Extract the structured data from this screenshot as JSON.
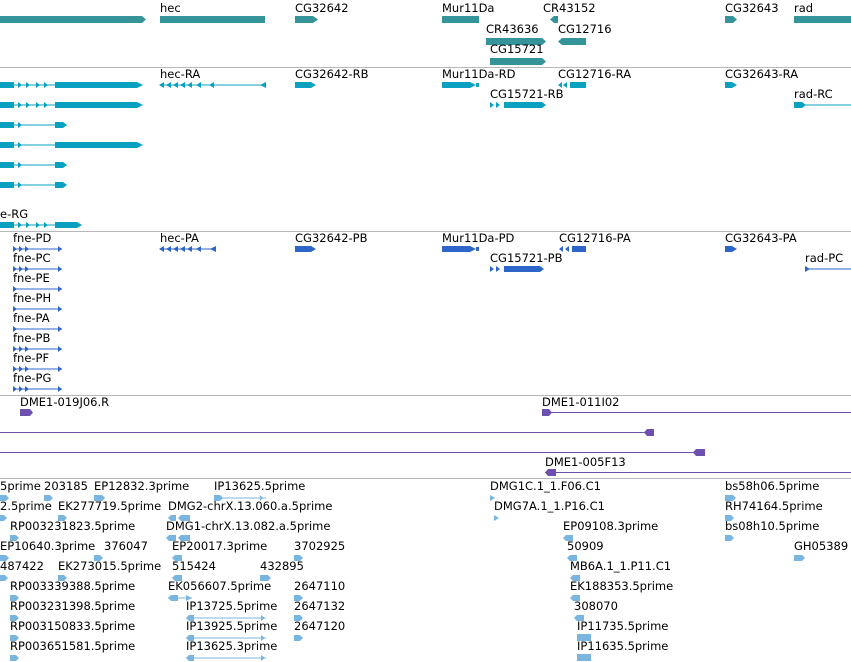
{
  "colors": {
    "gene": "#35939a",
    "mrna": "#0aa0c0",
    "cds": "#2d65c8",
    "clone": "#6e50ae",
    "est": "#7ab5e0",
    "separator": "#b8b8b8"
  },
  "tracks": {
    "genes": {
      "labels": [
        "hec",
        "CG32642",
        "Mur11Da",
        "CR43152",
        "CG32643",
        "rad",
        "CR43636",
        "CG12716",
        "CG15721"
      ]
    },
    "transcripts": {
      "labels": [
        "hec-RA",
        "CG32642-RB",
        "Mur11Da-RD",
        "CG12716-RA",
        "CG32643-RA",
        "rad-RC",
        "CG15721-RB",
        "e-RG"
      ]
    },
    "proteins": {
      "labels": [
        "fne-PD",
        "hec-PA",
        "CG32642-PB",
        "Mur11Da-PD",
        "CG12716-PA",
        "CG32643-PA",
        "rad-PC",
        "CG15721-PB",
        "fne-PC",
        "fne-PE",
        "fne-PH",
        "fne-PA",
        "fne-PB",
        "fne-PF",
        "fne-PG"
      ]
    },
    "clones": {
      "labels": [
        "DME1-019J06.R",
        "DME1-011I02",
        "DME1-005F13"
      ]
    },
    "ests": {
      "labels": [
        "5prime",
        "203185",
        "EP12832.3prime",
        "IP13625.5prime",
        "DMG1C.1_1.F06.C1",
        "bs58h06.5prime",
        "2.5prime",
        "EK277719.5prime",
        "DMG2-chrX.13.060.a.5prime",
        "DMG7A.1_1.P16.C1",
        "RH74164.5prime",
        "RP003231823.5prime",
        "DMG1-chrX.13.082.a.5prime",
        "EP09108.3prime",
        "bs08h10.5prime",
        "EP10640.3prime",
        "376047",
        "EP20017.3prime",
        "3702925",
        "50909",
        "GH05389",
        "487422",
        "EK273015.5prime",
        "515424",
        "432895",
        "MB6A.1_1.P11.C1",
        "RP003339388.5prime",
        "EK056607.5prime",
        "2647110",
        "EK188353.5prime",
        "RP003231398.5prime",
        "IP13725.5prime",
        "2647132",
        "308070",
        "RP003150833.5prime",
        "IP13925.5prime",
        "2647120",
        "IP11735.5prime",
        "RP003651581.5prime",
        "IP13625.3prime",
        "IP11635.5prime"
      ]
    }
  }
}
